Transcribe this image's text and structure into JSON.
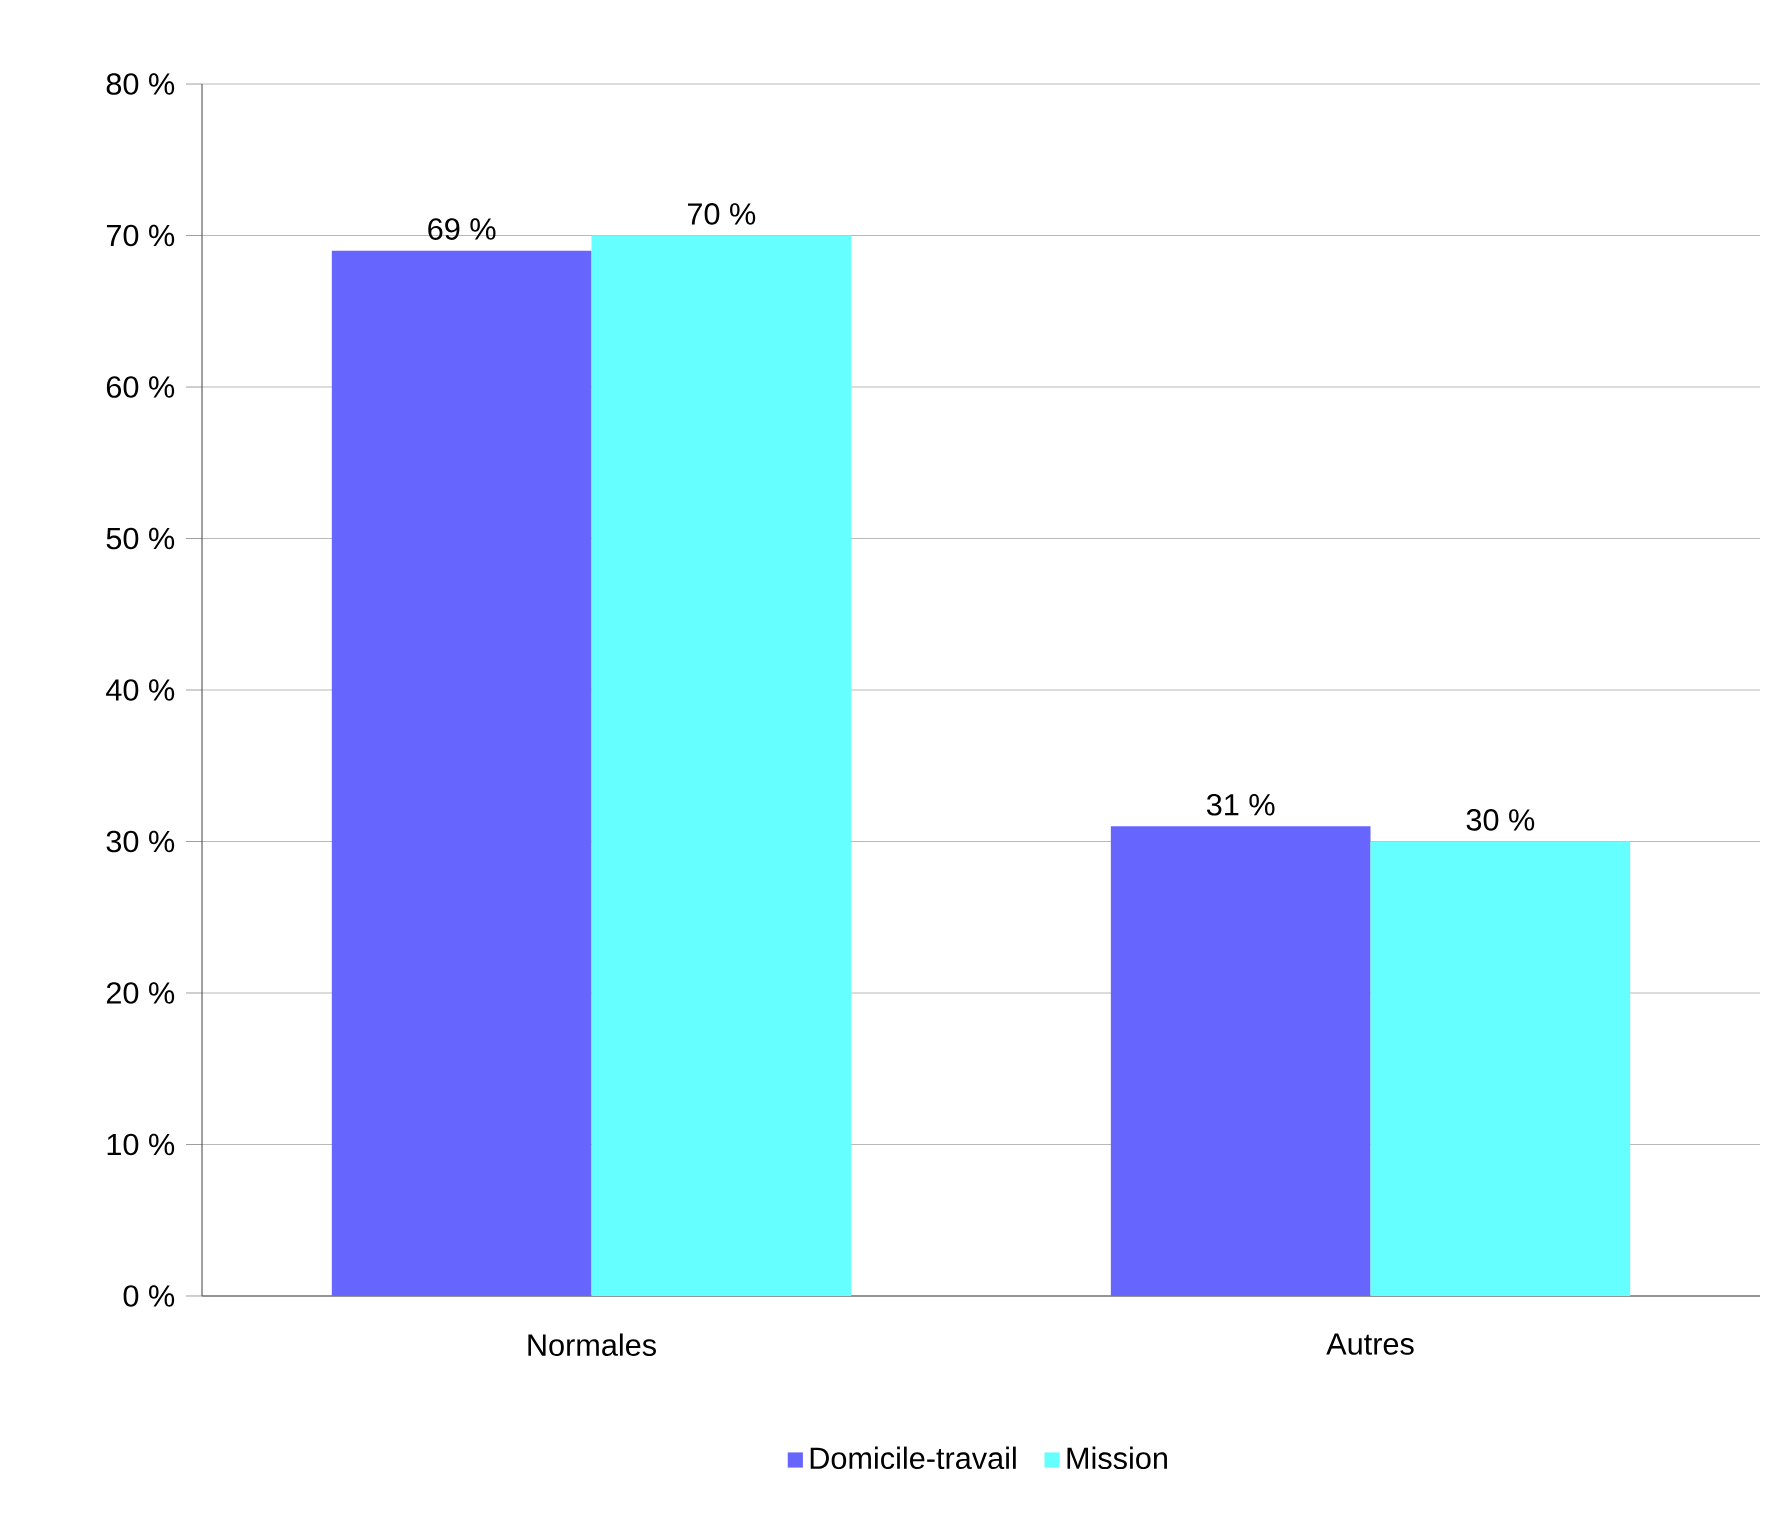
{
  "chart_data": {
    "type": "bar",
    "categories": [
      "Normales",
      "Autres"
    ],
    "series": [
      {
        "name": "Domicile-travail",
        "color": "#6666ff",
        "values": [
          69,
          31
        ],
        "value_labels": [
          "69 %",
          "31 %"
        ]
      },
      {
        "name": "Mission",
        "color": "#66ffff",
        "values": [
          70,
          30
        ],
        "value_labels": [
          "70 %",
          "30 %"
        ]
      }
    ],
    "ylim": [
      0,
      80
    ],
    "yticks": [
      {
        "value": 0,
        "label": "0 %"
      },
      {
        "value": 10,
        "label": "10 %"
      },
      {
        "value": 20,
        "label": "20 %"
      },
      {
        "value": 30,
        "label": "30 %"
      },
      {
        "value": 40,
        "label": "40 %"
      },
      {
        "value": 50,
        "label": "50 %"
      },
      {
        "value": 60,
        "label": "60 %"
      },
      {
        "value": 70,
        "label": "70 %"
      },
      {
        "value": 80,
        "label": "80 %"
      }
    ],
    "grid": "y",
    "legend": "bottom"
  }
}
